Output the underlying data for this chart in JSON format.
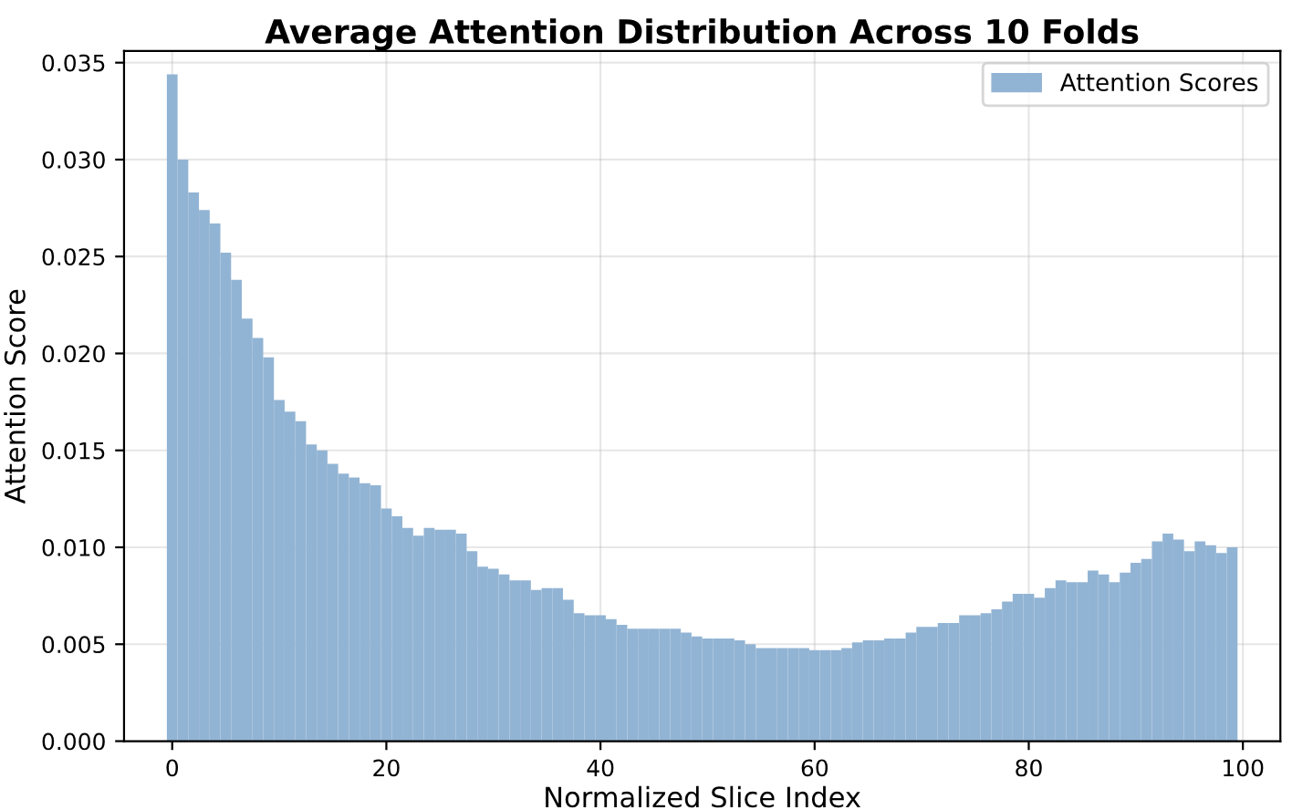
{
  "chart_data": {
    "type": "histogram",
    "title": "Average Attention Distribution Across 10 Folds",
    "xlabel": "Normalized Slice Index",
    "ylabel": "Attention Score",
    "bins": [
      -0.5,
      0.5,
      1.5,
      2.5,
      3.5,
      4.5,
      5.5,
      6.5,
      7.5,
      8.5,
      9.5,
      10.5,
      11.5,
      12.5,
      13.5,
      14.5,
      15.5,
      16.5,
      17.5,
      18.5,
      19.5,
      20.5,
      21.5,
      22.5,
      23.5,
      24.5,
      25.5,
      26.5,
      27.5,
      28.5,
      29.5,
      30.5,
      31.5,
      32.5,
      33.5,
      34.5,
      35.5,
      36.5,
      37.5,
      38.5,
      39.5,
      40.5,
      41.5,
      42.5,
      43.5,
      44.5,
      45.5,
      46.5,
      47.5,
      48.5,
      49.5,
      50.5,
      51.5,
      52.5,
      53.5,
      54.5,
      55.5,
      56.5,
      57.5,
      58.5,
      59.5,
      60.5,
      61.5,
      62.5,
      63.5,
      64.5,
      65.5,
      66.5,
      67.5,
      68.5,
      69.5,
      70.5,
      71.5,
      72.5,
      73.5,
      74.5,
      75.5,
      76.5,
      77.5,
      78.5,
      79.5,
      80.5,
      81.5,
      82.5,
      83.5,
      84.5,
      85.5,
      86.5,
      87.5,
      88.5,
      89.5,
      90.5,
      91.5,
      92.5,
      93.5,
      94.5,
      95.5,
      96.5,
      97.5,
      98.5,
      99.5
    ],
    "series": [
      {
        "name": "Attention Scores",
        "color": "#92b4d4",
        "values": [
          0.0344,
          0.03,
          0.0283,
          0.0274,
          0.0267,
          0.0252,
          0.0238,
          0.0218,
          0.0208,
          0.0198,
          0.0176,
          0.017,
          0.0165,
          0.0153,
          0.015,
          0.0143,
          0.0138,
          0.0136,
          0.0133,
          0.0132,
          0.012,
          0.0116,
          0.011,
          0.0106,
          0.011,
          0.0109,
          0.0109,
          0.0107,
          0.0098,
          0.009,
          0.0089,
          0.0086,
          0.0083,
          0.0083,
          0.0078,
          0.0079,
          0.0079,
          0.0073,
          0.0066,
          0.0065,
          0.0065,
          0.0063,
          0.006,
          0.0058,
          0.0058,
          0.0058,
          0.0058,
          0.0058,
          0.0056,
          0.0054,
          0.0053,
          0.0053,
          0.0053,
          0.0052,
          0.005,
          0.0048,
          0.0048,
          0.0048,
          0.0048,
          0.0048,
          0.0047,
          0.0047,
          0.0047,
          0.0048,
          0.0051,
          0.0052,
          0.0052,
          0.0053,
          0.0053,
          0.0056,
          0.0059,
          0.0059,
          0.0061,
          0.0061,
          0.0065,
          0.0065,
          0.0066,
          0.0068,
          0.0072,
          0.0076,
          0.0076,
          0.0074,
          0.0079,
          0.0083,
          0.0082,
          0.0082,
          0.0088,
          0.0086,
          0.0082,
          0.0087,
          0.0092,
          0.0094,
          0.0103,
          0.0107,
          0.0104,
          0.0098,
          0.0103,
          0.0101,
          0.0097,
          0.01
        ]
      }
    ],
    "xlim": [
      -4.5,
      103.5
    ],
    "xticks": [
      0,
      20,
      40,
      60,
      80,
      100
    ],
    "ylim": [
      0,
      0.0356
    ],
    "yticks": [
      {
        "value": 0,
        "label": "0.000"
      },
      {
        "value": 0.005,
        "label": "0.005"
      },
      {
        "value": 0.01,
        "label": "0.010"
      },
      {
        "value": 0.015,
        "label": "0.015"
      },
      {
        "value": 0.02,
        "label": "0.020"
      },
      {
        "value": 0.025,
        "label": "0.025"
      },
      {
        "value": 0.03,
        "label": "0.030"
      },
      {
        "value": 0.035,
        "label": "0.035"
      }
    ],
    "grid": true,
    "legend": "upper right"
  }
}
